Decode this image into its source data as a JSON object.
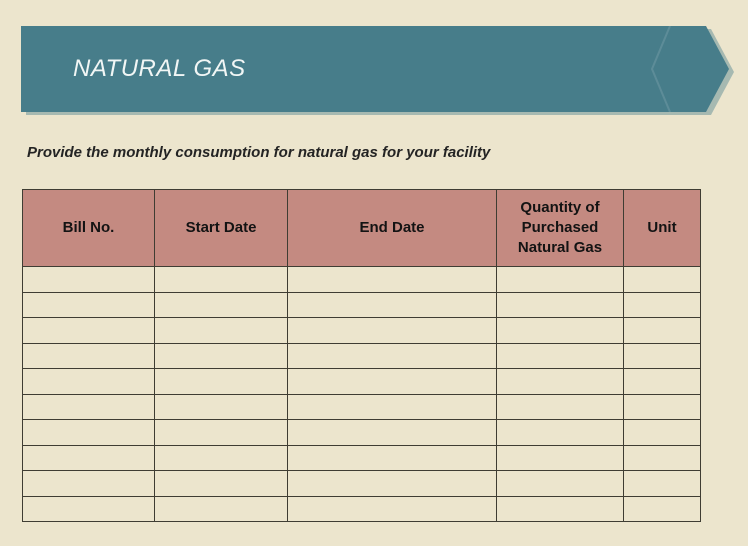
{
  "page": {
    "background_color": "#ece5cd"
  },
  "banner": {
    "title": "NATURAL GAS",
    "fill_color": "#477d8a",
    "shadow_color": "#a6b9b1",
    "text_color": "#f1f6f5"
  },
  "instruction": "Provide the monthly consumption for natural gas for your facility",
  "table": {
    "header_fill_color": "#c48a81",
    "border_color": "#3f3d33",
    "columns": [
      {
        "label": "Bill No."
      },
      {
        "label": "Start Date"
      },
      {
        "label": "End Date"
      },
      {
        "label": "Quantity of Purchased Natural Gas"
      },
      {
        "label": "Unit"
      }
    ],
    "rows": [
      [
        "",
        "",
        "",
        "",
        ""
      ],
      [
        "",
        "",
        "",
        "",
        ""
      ],
      [
        "",
        "",
        "",
        "",
        ""
      ],
      [
        "",
        "",
        "",
        "",
        ""
      ],
      [
        "",
        "",
        "",
        "",
        ""
      ],
      [
        "",
        "",
        "",
        "",
        ""
      ],
      [
        "",
        "",
        "",
        "",
        ""
      ],
      [
        "",
        "",
        "",
        "",
        ""
      ],
      [
        "",
        "",
        "",
        "",
        ""
      ],
      [
        "",
        "",
        "",
        "",
        ""
      ]
    ]
  }
}
